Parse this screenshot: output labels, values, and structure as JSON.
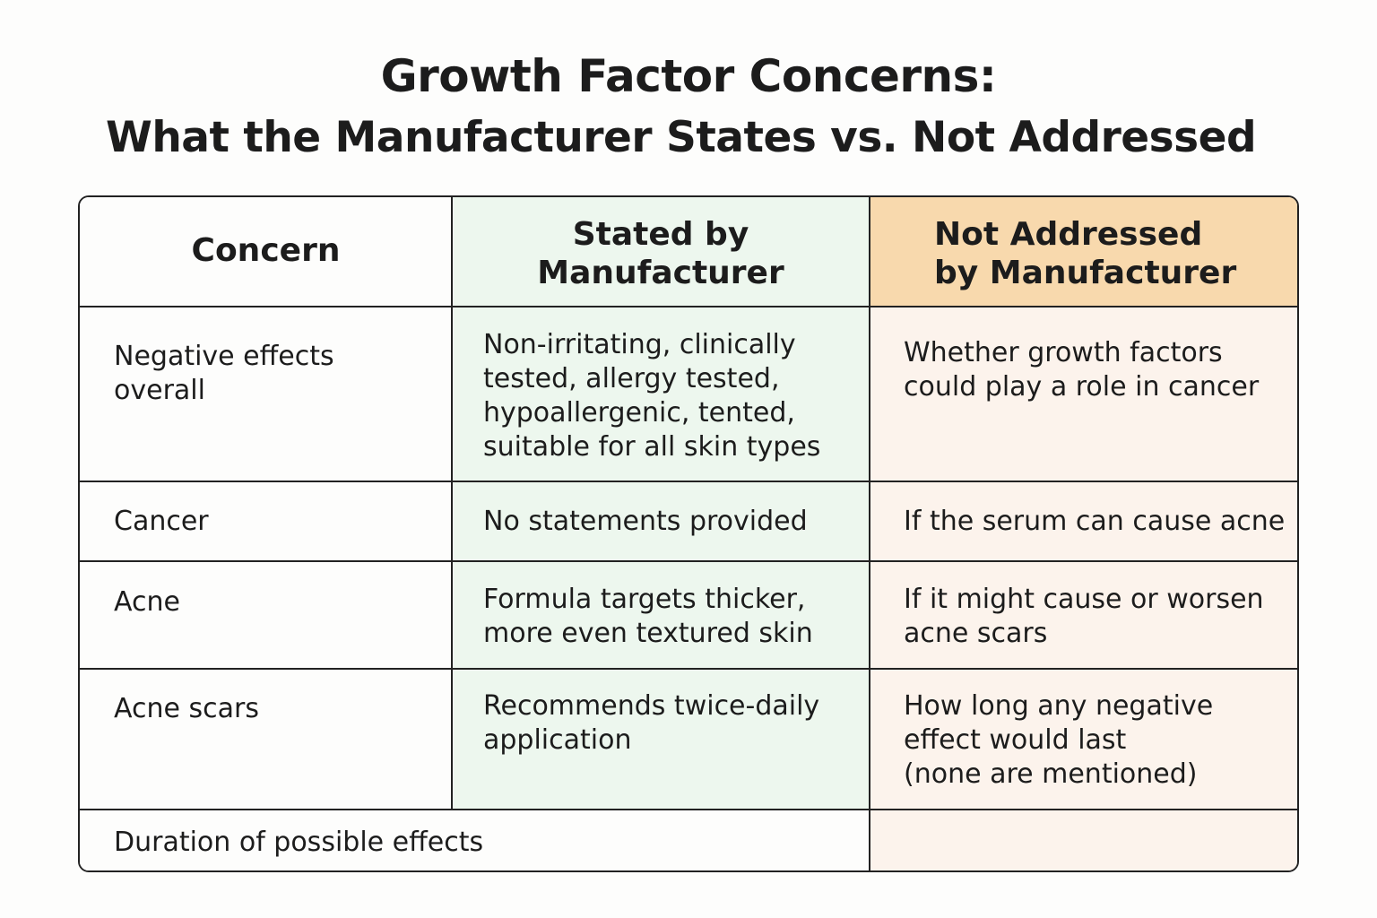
{
  "title": {
    "line1": "Growth Factor Concerns:",
    "line2": "What the Manufacturer States vs. Not Addressed"
  },
  "table": {
    "headers": {
      "concern": "Concern",
      "stated": "Stated by\nManufacturer",
      "not_addressed": "Not Addressed\nby Manufacturer"
    },
    "rows": [
      {
        "concern": "Negative effects\noverall",
        "stated": "Non-irritating, clinically\ntested, allergy tested,\nhypoallergenic, tented,\nsuitable for all skin types",
        "not_addressed": "Whether growth factors\ncould play a role in cancer"
      },
      {
        "concern": "Cancer",
        "stated": "No statements provided",
        "not_addressed": "If the serum can cause acne"
      },
      {
        "concern": "Acne",
        "stated": "Formula targets thicker,\nmore even textured skin",
        "not_addressed": "If it might cause or worsen\nacne scars"
      },
      {
        "concern": "Acne scars",
        "stated": "Recommends twice-daily\napplication",
        "not_addressed": "How long any negative\neffect would last\n(none are mentioned)"
      },
      {
        "concern": "Duration of possible effects",
        "stated": "",
        "not_addressed": ""
      }
    ]
  },
  "colors": {
    "stated_column_bg": "#edf7ee",
    "not_addressed_header_bg": "#f8d9ad",
    "not_addressed_column_bg": "#fcf3ec",
    "border": "#222222"
  }
}
